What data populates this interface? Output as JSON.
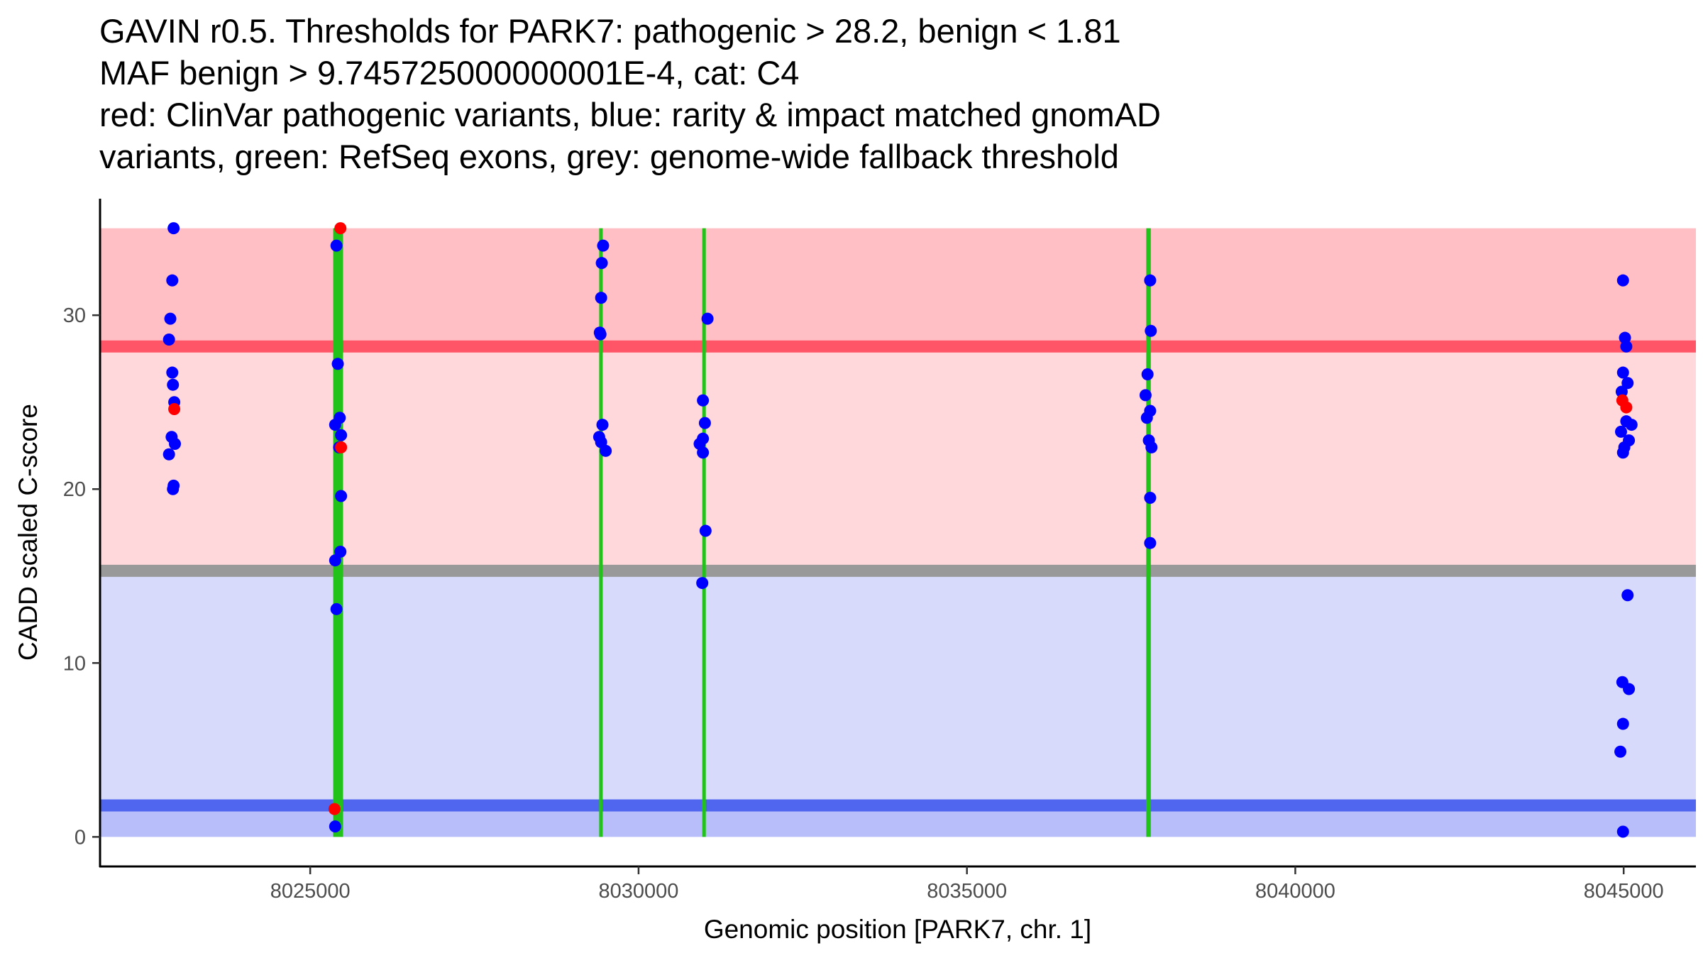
{
  "chart_data": {
    "type": "scatter",
    "title_lines": [
      "GAVIN r0.5. Thresholds for PARK7: pathogenic > 28.2, benign < 1.81",
      "MAF benign > 9.745725000000001E-4, cat: C4",
      "red: ClinVar pathogenic variants, blue: rarity & impact matched gnomAD",
      "variants, green: RefSeq exons, grey: genome-wide fallback threshold"
    ],
    "xlabel": "Genomic position [PARK7, chr. 1]",
    "ylabel": "CADD scaled C-score",
    "xlim": [
      8021800,
      8046100
    ],
    "ylim": [
      -1.7,
      36.7
    ],
    "x_ticks": [
      8025000,
      8030000,
      8035000,
      8040000,
      8045000
    ],
    "y_ticks": [
      0,
      10,
      20,
      30
    ],
    "colors": {
      "pathogenic_region": "#ffbfc5",
      "mid_region": "#ffd8dc",
      "benign_region": "#d8dafc",
      "low_region": "#b8befa",
      "pathogenic_line": "#ff5566",
      "benign_line": "#5066ee",
      "fallback_line": "#999999",
      "exon": "#22c21a",
      "gnomad_point": "#0000ff",
      "clinvar_point": "#ff0000"
    },
    "regions": [
      {
        "name": "pathogenic",
        "y0": 28.2,
        "y1": 35
      },
      {
        "name": "uncertain",
        "y0": 15.3,
        "y1": 28.2
      },
      {
        "name": "benign-fallback",
        "y0": 1.81,
        "y1": 15.3
      },
      {
        "name": "benign",
        "y0": 0,
        "y1": 1.81
      }
    ],
    "thresholds": [
      {
        "name": "pathogenic",
        "y": 28.2
      },
      {
        "name": "fallback",
        "y": 15.3
      },
      {
        "name": "benign",
        "y": 1.81
      }
    ],
    "exons": [
      {
        "start": 8025350,
        "end": 8025500
      },
      {
        "start": 8029400,
        "end": 8029450
      },
      {
        "start": 8030970,
        "end": 8031020
      },
      {
        "start": 8037730,
        "end": 8037800
      }
    ],
    "series": [
      {
        "name": "gnomAD",
        "points": [
          [
            8022920,
            35
          ],
          [
            8022900,
            32
          ],
          [
            8022870,
            29.8
          ],
          [
            8022850,
            28.6
          ],
          [
            8022900,
            26.7
          ],
          [
            8022910,
            26
          ],
          [
            8022930,
            25
          ],
          [
            8022890,
            23
          ],
          [
            8022940,
            22.6
          ],
          [
            8022850,
            22
          ],
          [
            8022920,
            20.2
          ],
          [
            8022910,
            20
          ],
          [
            8025400,
            34
          ],
          [
            8025420,
            27.2
          ],
          [
            8025380,
            23.7
          ],
          [
            8025450,
            24.1
          ],
          [
            8025470,
            23.1
          ],
          [
            8025440,
            22.4
          ],
          [
            8025470,
            19.6
          ],
          [
            8025460,
            16.4
          ],
          [
            8025380,
            15.9
          ],
          [
            8025400,
            13.1
          ],
          [
            8025380,
            0.6
          ],
          [
            8029460,
            34
          ],
          [
            8029440,
            33
          ],
          [
            8029430,
            31
          ],
          [
            8029410,
            29
          ],
          [
            8029420,
            28.9
          ],
          [
            8029450,
            23.7
          ],
          [
            8029400,
            23
          ],
          [
            8029430,
            22.7
          ],
          [
            8029500,
            22.2
          ],
          [
            8031050,
            29.8
          ],
          [
            8030980,
            25.1
          ],
          [
            8031010,
            23.8
          ],
          [
            8030980,
            22.9
          ],
          [
            8030930,
            22.6
          ],
          [
            8030980,
            22.1
          ],
          [
            8031020,
            17.6
          ],
          [
            8030970,
            14.6
          ],
          [
            8037790,
            32
          ],
          [
            8037800,
            29.1
          ],
          [
            8037750,
            26.6
          ],
          [
            8037720,
            25.4
          ],
          [
            8037790,
            24.5
          ],
          [
            8037740,
            24.1
          ],
          [
            8037770,
            22.8
          ],
          [
            8037810,
            22.4
          ],
          [
            8037790,
            19.5
          ],
          [
            8037790,
            16.9
          ],
          [
            8044990,
            32
          ],
          [
            8045020,
            28.7
          ],
          [
            8045040,
            28.2
          ],
          [
            8044990,
            26.7
          ],
          [
            8045060,
            26.1
          ],
          [
            8044970,
            25.6
          ],
          [
            8045040,
            23.9
          ],
          [
            8045120,
            23.7
          ],
          [
            8044960,
            23.3
          ],
          [
            8045080,
            22.8
          ],
          [
            8045010,
            22.4
          ],
          [
            8044990,
            22.1
          ],
          [
            8045060,
            13.9
          ],
          [
            8044980,
            8.9
          ],
          [
            8045080,
            8.5
          ],
          [
            8044990,
            6.5
          ],
          [
            8044950,
            4.9
          ],
          [
            8044990,
            0.3
          ]
        ]
      },
      {
        "name": "ClinVar",
        "points": [
          [
            8022930,
            24.6
          ],
          [
            8025460,
            35
          ],
          [
            8025470,
            22.4
          ],
          [
            8025370,
            1.6
          ],
          [
            8044980,
            25.1
          ],
          [
            8045040,
            24.7
          ]
        ]
      }
    ]
  }
}
